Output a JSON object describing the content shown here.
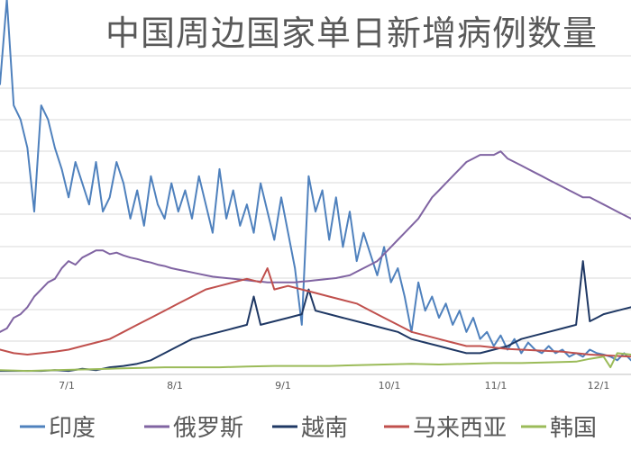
{
  "chart_data": {
    "type": "line",
    "title": "中国周边国家单日新增病例数量",
    "x_ticks": [
      "7/1",
      "8/1",
      "9/1",
      "10/1",
      "11/1",
      "12/1"
    ],
    "x_range": [
      "6/8",
      "12/10"
    ],
    "grid": true,
    "legend_position": "bottom",
    "series": [
      {
        "name": "印度",
        "color": "#4f81bd",
        "values": [
          [
            0,
            4.1
          ],
          [
            2,
            5.3
          ],
          [
            4,
            3.8
          ],
          [
            6,
            3.6
          ],
          [
            8,
            3.2
          ],
          [
            10,
            2.3
          ],
          [
            12,
            3.8
          ],
          [
            14,
            3.6
          ],
          [
            16,
            3.2
          ],
          [
            18,
            2.9
          ],
          [
            20,
            2.5
          ],
          [
            22,
            3.0
          ],
          [
            24,
            2.7
          ],
          [
            26,
            2.4
          ],
          [
            28,
            3.0
          ],
          [
            30,
            2.3
          ],
          [
            32,
            2.5
          ],
          [
            34,
            3.0
          ],
          [
            36,
            2.7
          ],
          [
            38,
            2.2
          ],
          [
            40,
            2.6
          ],
          [
            42,
            2.1
          ],
          [
            44,
            2.8
          ],
          [
            46,
            2.4
          ],
          [
            48,
            2.2
          ],
          [
            50,
            2.7
          ],
          [
            52,
            2.3
          ],
          [
            54,
            2.6
          ],
          [
            56,
            2.2
          ],
          [
            58,
            2.8
          ],
          [
            60,
            2.4
          ],
          [
            62,
            2.0
          ],
          [
            64,
            2.9
          ],
          [
            66,
            2.2
          ],
          [
            68,
            2.6
          ],
          [
            70,
            2.1
          ],
          [
            72,
            2.4
          ],
          [
            74,
            2.0
          ],
          [
            76,
            2.7
          ],
          [
            78,
            2.3
          ],
          [
            80,
            1.9
          ],
          [
            82,
            2.5
          ],
          [
            84,
            2.0
          ],
          [
            86,
            1.5
          ],
          [
            88,
            0.7
          ],
          [
            90,
            2.8
          ],
          [
            92,
            2.3
          ],
          [
            94,
            2.6
          ],
          [
            96,
            1.9
          ],
          [
            98,
            2.5
          ],
          [
            100,
            1.8
          ],
          [
            102,
            2.3
          ],
          [
            104,
            1.6
          ],
          [
            106,
            2.0
          ],
          [
            108,
            1.7
          ],
          [
            110,
            1.4
          ],
          [
            112,
            1.8
          ],
          [
            114,
            1.3
          ],
          [
            116,
            1.5
          ],
          [
            118,
            1.1
          ],
          [
            120,
            0.6
          ],
          [
            122,
            1.3
          ],
          [
            124,
            0.9
          ],
          [
            126,
            1.1
          ],
          [
            128,
            0.8
          ],
          [
            130,
            1.0
          ],
          [
            132,
            0.7
          ],
          [
            134,
            0.9
          ],
          [
            136,
            0.6
          ],
          [
            138,
            0.8
          ],
          [
            140,
            0.5
          ],
          [
            142,
            0.6
          ],
          [
            144,
            0.4
          ],
          [
            146,
            0.55
          ],
          [
            148,
            0.35
          ],
          [
            150,
            0.5
          ],
          [
            152,
            0.3
          ],
          [
            154,
            0.45
          ],
          [
            156,
            0.35
          ],
          [
            158,
            0.3
          ],
          [
            160,
            0.4
          ],
          [
            162,
            0.3
          ],
          [
            164,
            0.35
          ],
          [
            166,
            0.25
          ],
          [
            168,
            0.3
          ],
          [
            170,
            0.25
          ],
          [
            172,
            0.35
          ],
          [
            174,
            0.3
          ],
          [
            176,
            0.28
          ],
          [
            178,
            0.25
          ],
          [
            180,
            0.2
          ],
          [
            182,
            0.3
          ],
          [
            184,
            0.2
          ]
        ]
      },
      {
        "name": "俄罗斯",
        "color": "#8064a2",
        "values": [
          [
            0,
            0.6
          ],
          [
            2,
            0.65
          ],
          [
            4,
            0.8
          ],
          [
            6,
            0.85
          ],
          [
            8,
            0.95
          ],
          [
            10,
            1.1
          ],
          [
            12,
            1.2
          ],
          [
            14,
            1.3
          ],
          [
            16,
            1.35
          ],
          [
            18,
            1.5
          ],
          [
            20,
            1.6
          ],
          [
            22,
            1.55
          ],
          [
            24,
            1.65
          ],
          [
            26,
            1.7
          ],
          [
            28,
            1.75
          ],
          [
            30,
            1.75
          ],
          [
            32,
            1.7
          ],
          [
            34,
            1.72
          ],
          [
            36,
            1.68
          ],
          [
            38,
            1.65
          ],
          [
            40,
            1.63
          ],
          [
            42,
            1.6
          ],
          [
            44,
            1.58
          ],
          [
            46,
            1.55
          ],
          [
            48,
            1.53
          ],
          [
            50,
            1.5
          ],
          [
            52,
            1.48
          ],
          [
            54,
            1.46
          ],
          [
            56,
            1.44
          ],
          [
            58,
            1.42
          ],
          [
            60,
            1.4
          ],
          [
            62,
            1.38
          ],
          [
            64,
            1.37
          ],
          [
            66,
            1.36
          ],
          [
            68,
            1.35
          ],
          [
            70,
            1.34
          ],
          [
            72,
            1.33
          ],
          [
            74,
            1.32
          ],
          [
            76,
            1.31
          ],
          [
            78,
            1.3
          ],
          [
            80,
            1.3
          ],
          [
            82,
            1.3
          ],
          [
            84,
            1.3
          ],
          [
            86,
            1.3
          ],
          [
            88,
            1.31
          ],
          [
            90,
            1.32
          ],
          [
            92,
            1.33
          ],
          [
            94,
            1.34
          ],
          [
            96,
            1.35
          ],
          [
            98,
            1.36
          ],
          [
            100,
            1.38
          ],
          [
            102,
            1.4
          ],
          [
            104,
            1.45
          ],
          [
            106,
            1.5
          ],
          [
            108,
            1.55
          ],
          [
            110,
            1.6
          ],
          [
            112,
            1.7
          ],
          [
            114,
            1.8
          ],
          [
            116,
            1.9
          ],
          [
            118,
            2.0
          ],
          [
            120,
            2.1
          ],
          [
            122,
            2.2
          ],
          [
            124,
            2.35
          ],
          [
            126,
            2.5
          ],
          [
            128,
            2.6
          ],
          [
            130,
            2.7
          ],
          [
            132,
            2.8
          ],
          [
            134,
            2.9
          ],
          [
            136,
            3.0
          ],
          [
            138,
            3.05
          ],
          [
            140,
            3.1
          ],
          [
            142,
            3.1
          ],
          [
            144,
            3.1
          ],
          [
            146,
            3.15
          ],
          [
            148,
            3.05
          ],
          [
            150,
            3.0
          ],
          [
            152,
            2.95
          ],
          [
            154,
            2.9
          ],
          [
            156,
            2.85
          ],
          [
            158,
            2.8
          ],
          [
            160,
            2.75
          ],
          [
            162,
            2.7
          ],
          [
            164,
            2.65
          ],
          [
            166,
            2.6
          ],
          [
            168,
            2.55
          ],
          [
            170,
            2.5
          ],
          [
            172,
            2.5
          ],
          [
            174,
            2.45
          ],
          [
            176,
            2.4
          ],
          [
            178,
            2.35
          ],
          [
            180,
            2.3
          ],
          [
            182,
            2.25
          ],
          [
            184,
            2.2
          ]
        ]
      },
      {
        "name": "越南",
        "color": "#1f3864",
        "values": [
          [
            0,
            0.05
          ],
          [
            4,
            0.05
          ],
          [
            8,
            0.05
          ],
          [
            12,
            0.05
          ],
          [
            16,
            0.06
          ],
          [
            20,
            0.05
          ],
          [
            24,
            0.08
          ],
          [
            28,
            0.06
          ],
          [
            32,
            0.1
          ],
          [
            36,
            0.12
          ],
          [
            40,
            0.15
          ],
          [
            44,
            0.2
          ],
          [
            48,
            0.3
          ],
          [
            52,
            0.4
          ],
          [
            56,
            0.5
          ],
          [
            60,
            0.55
          ],
          [
            64,
            0.6
          ],
          [
            68,
            0.65
          ],
          [
            72,
            0.7
          ],
          [
            74,
            1.1
          ],
          [
            76,
            0.7
          ],
          [
            80,
            0.75
          ],
          [
            84,
            0.8
          ],
          [
            88,
            0.85
          ],
          [
            90,
            1.2
          ],
          [
            92,
            0.9
          ],
          [
            96,
            0.85
          ],
          [
            100,
            0.8
          ],
          [
            104,
            0.75
          ],
          [
            108,
            0.7
          ],
          [
            112,
            0.65
          ],
          [
            116,
            0.6
          ],
          [
            120,
            0.5
          ],
          [
            124,
            0.45
          ],
          [
            128,
            0.4
          ],
          [
            132,
            0.35
          ],
          [
            136,
            0.3
          ],
          [
            140,
            0.3
          ],
          [
            144,
            0.35
          ],
          [
            148,
            0.4
          ],
          [
            152,
            0.5
          ],
          [
            156,
            0.55
          ],
          [
            160,
            0.6
          ],
          [
            164,
            0.65
          ],
          [
            168,
            0.7
          ],
          [
            170,
            1.6
          ],
          [
            172,
            0.75
          ],
          [
            174,
            0.8
          ],
          [
            176,
            0.85
          ],
          [
            180,
            0.9
          ],
          [
            184,
            0.95
          ]
        ]
      },
      {
        "name": "马来西亚",
        "color": "#c0504d",
        "values": [
          [
            0,
            0.35
          ],
          [
            4,
            0.3
          ],
          [
            8,
            0.28
          ],
          [
            12,
            0.3
          ],
          [
            16,
            0.32
          ],
          [
            20,
            0.35
          ],
          [
            24,
            0.4
          ],
          [
            28,
            0.45
          ],
          [
            32,
            0.5
          ],
          [
            36,
            0.6
          ],
          [
            40,
            0.7
          ],
          [
            44,
            0.8
          ],
          [
            48,
            0.9
          ],
          [
            52,
            1.0
          ],
          [
            56,
            1.1
          ],
          [
            60,
            1.2
          ],
          [
            64,
            1.25
          ],
          [
            68,
            1.3
          ],
          [
            72,
            1.35
          ],
          [
            76,
            1.3
          ],
          [
            78,
            1.5
          ],
          [
            80,
            1.2
          ],
          [
            84,
            1.25
          ],
          [
            88,
            1.2
          ],
          [
            92,
            1.15
          ],
          [
            96,
            1.1
          ],
          [
            100,
            1.05
          ],
          [
            104,
            1.0
          ],
          [
            108,
            0.9
          ],
          [
            112,
            0.8
          ],
          [
            116,
            0.7
          ],
          [
            120,
            0.6
          ],
          [
            124,
            0.55
          ],
          [
            128,
            0.5
          ],
          [
            132,
            0.45
          ],
          [
            136,
            0.4
          ],
          [
            140,
            0.4
          ],
          [
            144,
            0.38
          ],
          [
            148,
            0.36
          ],
          [
            152,
            0.35
          ],
          [
            156,
            0.34
          ],
          [
            160,
            0.33
          ],
          [
            164,
            0.32
          ],
          [
            168,
            0.3
          ],
          [
            172,
            0.28
          ],
          [
            176,
            0.27
          ],
          [
            180,
            0.26
          ],
          [
            184,
            0.25
          ]
        ]
      },
      {
        "name": "韩国",
        "color": "#9bbb59",
        "values": [
          [
            0,
            0.06
          ],
          [
            8,
            0.05
          ],
          [
            16,
            0.06
          ],
          [
            24,
            0.07
          ],
          [
            32,
            0.08
          ],
          [
            40,
            0.09
          ],
          [
            48,
            0.1
          ],
          [
            56,
            0.1
          ],
          [
            64,
            0.1
          ],
          [
            72,
            0.11
          ],
          [
            80,
            0.12
          ],
          [
            88,
            0.12
          ],
          [
            96,
            0.12
          ],
          [
            104,
            0.13
          ],
          [
            112,
            0.14
          ],
          [
            120,
            0.15
          ],
          [
            128,
            0.14
          ],
          [
            136,
            0.15
          ],
          [
            144,
            0.16
          ],
          [
            152,
            0.16
          ],
          [
            160,
            0.17
          ],
          [
            168,
            0.18
          ],
          [
            172,
            0.22
          ],
          [
            176,
            0.25
          ],
          [
            178,
            0.1
          ],
          [
            180,
            0.3
          ],
          [
            184,
            0.28
          ]
        ]
      }
    ]
  }
}
